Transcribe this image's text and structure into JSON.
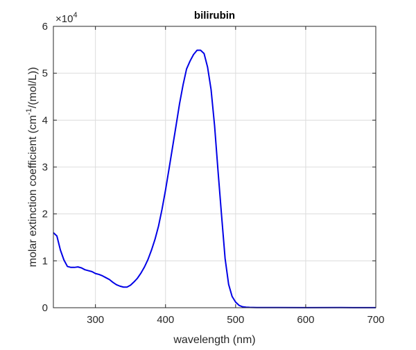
{
  "chart_data": {
    "type": "line",
    "title": "bilirubin",
    "xlabel": "wavelength (nm)",
    "ylabel": {
      "prefix": "molar extinction coefficient (cm",
      "superscript": "-1",
      "suffix": "/(mol/L))"
    },
    "xlim": [
      240,
      700
    ],
    "ylim": [
      0,
      60000
    ],
    "x_ticks": [
      300,
      400,
      500,
      600,
      700
    ],
    "x_tick_labels": [
      "300",
      "400",
      "500",
      "600",
      "700"
    ],
    "y_ticks": [
      0,
      10000,
      20000,
      30000,
      40000,
      50000,
      60000
    ],
    "y_tick_labels": [
      "0",
      "1",
      "2",
      "3",
      "4",
      "5",
      "6"
    ],
    "y_exponent": {
      "base": "×10",
      "power": "4"
    },
    "grid": true,
    "series": [
      {
        "color": "#0000e6",
        "x": [
          240,
          245,
          250,
          255,
          260,
          265,
          270,
          275,
          280,
          285,
          290,
          295,
          300,
          305,
          310,
          315,
          320,
          325,
          330,
          335,
          340,
          345,
          350,
          355,
          360,
          365,
          370,
          375,
          380,
          385,
          390,
          395,
          400,
          405,
          410,
          415,
          420,
          425,
          430,
          435,
          440,
          445,
          450,
          455,
          460,
          465,
          470,
          475,
          480,
          485,
          490,
          495,
          500,
          505,
          510,
          515,
          520,
          525,
          530,
          540,
          550,
          560,
          600,
          650,
          700
        ],
        "y": [
          16000,
          15300,
          12300,
          10200,
          8800,
          8600,
          8600,
          8700,
          8500,
          8100,
          7900,
          7700,
          7300,
          7100,
          6800,
          6400,
          6000,
          5400,
          4900,
          4600,
          4400,
          4400,
          4800,
          5500,
          6300,
          7400,
          8700,
          10300,
          12300,
          14600,
          17400,
          21000,
          25100,
          29600,
          34200,
          38800,
          43500,
          47500,
          50900,
          52600,
          54000,
          54900,
          54900,
          54200,
          51300,
          46500,
          38800,
          29000,
          19600,
          10500,
          5000,
          2400,
          1200,
          500,
          200,
          120,
          80,
          60,
          40,
          30,
          30,
          30,
          20,
          30,
          20
        ]
      }
    ]
  }
}
